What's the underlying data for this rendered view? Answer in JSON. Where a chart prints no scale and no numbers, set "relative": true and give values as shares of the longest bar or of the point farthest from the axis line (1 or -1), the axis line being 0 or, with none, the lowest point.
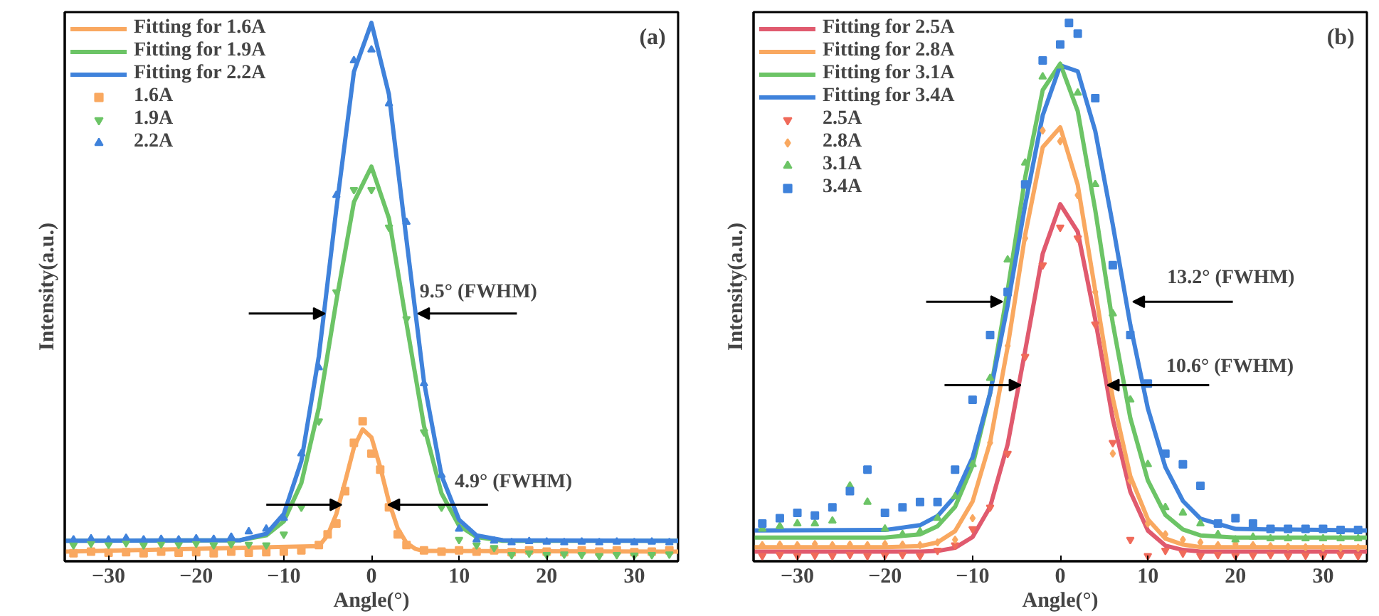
{
  "chart_data": [
    {
      "type": "line",
      "relative": true,
      "xlabel": "Angle(°)",
      "ylabel": "Intensity(a.u.)",
      "xlim": [
        -35,
        35
      ],
      "xticks": [
        -30,
        -20,
        -10,
        0,
        10,
        20,
        30
      ],
      "legend": "top left",
      "annotations": [
        "(a)",
        "9.5° (FWHM)",
        "4.9° (FWHM)"
      ],
      "series": [
        {
          "name": "Fitting for 1.6A",
          "color": "#f9a860",
          "x": [
            -35,
            -6,
            -5,
            -4,
            -3,
            -2,
            -1,
            0,
            1,
            2,
            3,
            4,
            5,
            6,
            35
          ],
          "values": [
            0.018,
            0.028,
            0.048,
            0.088,
            0.148,
            0.211,
            0.245,
            0.23,
            0.175,
            0.11,
            0.061,
            0.034,
            0.023,
            0.019,
            0.018
          ]
        },
        {
          "name": "Fitting for 1.9A",
          "color": "#6cc466",
          "x": [
            -35,
            -15,
            -12,
            -10,
            -8,
            -6,
            -4,
            -2,
            0,
            2,
            4,
            6,
            8,
            10,
            12,
            15,
            35
          ],
          "values": [
            0.038,
            0.039,
            0.048,
            0.074,
            0.145,
            0.285,
            0.484,
            0.667,
            0.733,
            0.637,
            0.442,
            0.251,
            0.126,
            0.066,
            0.045,
            0.038,
            0.038
          ]
        },
        {
          "name": "Fitting for 2.2A",
          "color": "#3f82db",
          "x": [
            -35,
            -15,
            -12,
            -10,
            -8,
            -6,
            -4,
            -2,
            0,
            2,
            4,
            6,
            8,
            10,
            12,
            15,
            35
          ],
          "values": [
            0.038,
            0.039,
            0.051,
            0.088,
            0.186,
            0.381,
            0.655,
            0.909,
            1.0,
            0.867,
            0.597,
            0.333,
            0.159,
            0.077,
            0.048,
            0.039,
            0.038
          ]
        },
        {
          "name": "1.6A",
          "type": "scatter",
          "marker": "square",
          "color": "#f9a860",
          "x": [
            -34,
            -32,
            -30,
            -28,
            -26,
            -24,
            -22,
            -20,
            -18,
            -16,
            -14,
            -12,
            -10,
            -8,
            -6,
            -5,
            -4,
            -3,
            -2,
            -1,
            0,
            1,
            2,
            3,
            4,
            6,
            8,
            10,
            12,
            14,
            16,
            18,
            20,
            22,
            24,
            26,
            28,
            30,
            32,
            34
          ],
          "values": [
            0.015,
            0.018,
            0.016,
            0.017,
            0.015,
            0.018,
            0.016,
            0.017,
            0.015,
            0.018,
            0.016,
            0.017,
            0.018,
            0.02,
            0.03,
            0.05,
            0.07,
            0.13,
            0.22,
            0.26,
            0.2,
            0.17,
            0.1,
            0.05,
            0.03,
            0.02,
            0.018,
            0.02,
            0.018,
            0.02,
            0.017,
            0.02,
            0.018,
            0.017,
            0.02,
            0.018,
            0.02,
            0.017,
            0.018,
            0.02
          ]
        },
        {
          "name": "1.9A",
          "type": "scatter",
          "color": "#6cc466",
          "x": [
            -34,
            -32,
            -30,
            -28,
            -26,
            -24,
            -22,
            -20,
            -18,
            -16,
            -14,
            -12,
            -10,
            -8,
            -6,
            -4,
            -2,
            0,
            2,
            4,
            6,
            8,
            10,
            12,
            14,
            16,
            18,
            20,
            22,
            24,
            26,
            28,
            30,
            32,
            34
          ],
          "values": [
            0.03,
            0.033,
            0.031,
            0.034,
            0.03,
            0.032,
            0.031,
            0.033,
            0.03,
            0.032,
            0.031,
            0.03,
            0.05,
            0.1,
            0.26,
            0.5,
            0.69,
            0.69,
            0.62,
            0.45,
            0.24,
            0.1,
            0.04,
            0.03,
            0.025,
            0.012,
            0.015,
            0.012,
            0.013,
            0.012,
            0.01,
            0.012,
            0.011,
            0.012,
            0.013
          ]
        },
        {
          "name": "2.2A",
          "type": "scatter",
          "marker": "triangle",
          "color": "#3f82db",
          "x": [
            -34,
            -32,
            -30,
            -28,
            -26,
            -24,
            -22,
            -20,
            -18,
            -16,
            -14,
            -12,
            -10,
            -8,
            -6,
            -4,
            -2,
            0,
            2,
            4,
            6,
            8,
            10,
            12,
            14,
            16,
            18,
            20,
            22,
            24,
            26,
            28,
            30,
            32,
            34
          ],
          "values": [
            0.04,
            0.042,
            0.04,
            0.043,
            0.04,
            0.041,
            0.04,
            0.042,
            0.041,
            0.045,
            0.055,
            0.06,
            0.08,
            0.2,
            0.36,
            0.68,
            0.93,
            0.95,
            0.85,
            0.63,
            0.33,
            0.16,
            0.06,
            0.04,
            0.038,
            0.035,
            0.037,
            0.036,
            0.035,
            0.036,
            0.035,
            0.036,
            0.035,
            0.036,
            0.035
          ]
        }
      ]
    },
    {
      "type": "line",
      "relative": true,
      "xlabel": "Angle(°)",
      "ylabel": "Intensity(a.u.)",
      "xlim": [
        -35,
        35
      ],
      "xticks": [
        -30,
        -20,
        -10,
        0,
        10,
        20,
        30
      ],
      "legend": "top left",
      "annotations": [
        "(b)",
        "13.2° (FWHM)",
        "10.6° (FWHM)"
      ],
      "series": [
        {
          "name": "Fitting for 2.5A",
          "color": "#e05a6e",
          "x": [
            -35,
            -20,
            -16,
            -14,
            -12,
            -10,
            -8,
            -6,
            -4,
            -2,
            0,
            2,
            4,
            6,
            8,
            10,
            12,
            14,
            16,
            20,
            35
          ],
          "values": [
            0.018,
            0.018,
            0.018,
            0.019,
            0.025,
            0.045,
            0.101,
            0.217,
            0.391,
            0.571,
            0.663,
            0.612,
            0.449,
            0.264,
            0.129,
            0.057,
            0.029,
            0.021,
            0.018,
            0.018,
            0.018
          ]
        },
        {
          "name": "Fitting for 2.8A",
          "color": "#f9a860",
          "x": [
            -35,
            -20,
            -16,
            -14,
            -12,
            -10,
            -8,
            -6,
            -4,
            -2,
            0,
            2,
            4,
            6,
            8,
            10,
            12,
            14,
            16,
            20,
            35
          ],
          "values": [
            0.026,
            0.026,
            0.028,
            0.035,
            0.056,
            0.111,
            0.221,
            0.398,
            0.606,
            0.769,
            0.806,
            0.699,
            0.502,
            0.303,
            0.158,
            0.078,
            0.042,
            0.031,
            0.026,
            0.026,
            0.026
          ]
        },
        {
          "name": "Fitting for 3.1A",
          "color": "#6cc466",
          "x": [
            -35,
            -20,
            -16,
            -14,
            -12,
            -10,
            -8,
            -6,
            -4,
            -2,
            0,
            2,
            4,
            6,
            8,
            10,
            12,
            14,
            16,
            20,
            35
          ],
          "values": [
            0.044,
            0.044,
            0.05,
            0.065,
            0.101,
            0.178,
            0.312,
            0.503,
            0.713,
            0.875,
            0.924,
            0.836,
            0.652,
            0.442,
            0.266,
            0.15,
            0.086,
            0.059,
            0.048,
            0.044,
            0.044
          ]
        },
        {
          "name": "Fitting for 3.4A",
          "color": "#3f82db",
          "x": [
            -35,
            -20,
            -16,
            -14,
            -12,
            -10,
            -8,
            -6,
            -4,
            -2,
            0,
            2,
            4,
            6,
            8,
            10,
            12,
            14,
            16,
            20,
            35
          ],
          "values": [
            0.057,
            0.058,
            0.067,
            0.084,
            0.121,
            0.193,
            0.312,
            0.475,
            0.662,
            0.828,
            0.921,
            0.91,
            0.799,
            0.625,
            0.439,
            0.284,
            0.175,
            0.112,
            0.079,
            0.06,
            0.057
          ]
        },
        {
          "name": "2.5A",
          "type": "scatter",
          "color": "#f06a5a",
          "x": [
            -34,
            -32,
            -30,
            -28,
            -26,
            -24,
            -22,
            -20,
            -18,
            -16,
            -14,
            -12,
            -10,
            -8,
            -6,
            -4,
            -2,
            0,
            2,
            4,
            6,
            8,
            10,
            12,
            14,
            16,
            18,
            20,
            22,
            24,
            26,
            28,
            30,
            32,
            34
          ],
          "values": [
            0.01,
            0.012,
            0.01,
            0.011,
            0.01,
            0.012,
            0.01,
            0.011,
            0.012,
            0.01,
            0.02,
            0.03,
            0.06,
            0.1,
            0.2,
            0.38,
            0.55,
            0.62,
            0.6,
            0.44,
            0.22,
            0.04,
            0.01,
            0.02,
            0.015,
            0.01,
            0.012,
            0.01,
            0.011,
            0.012,
            0.01,
            0.011,
            0.01,
            0.012,
            0.01
          ]
        },
        {
          "name": "2.8A",
          "type": "scatter",
          "marker": "diamond",
          "color": "#f9a860",
          "x": [
            -34,
            -32,
            -30,
            -28,
            -26,
            -24,
            -22,
            -20,
            -18,
            -16,
            -14,
            -12,
            -10,
            -8,
            -6,
            -4,
            -2,
            0,
            2,
            4,
            6,
            8,
            10,
            12,
            14,
            16,
            18,
            20,
            22,
            24,
            26,
            28,
            30,
            32,
            34
          ],
          "values": [
            0.03,
            0.031,
            0.03,
            0.032,
            0.03,
            0.031,
            0.03,
            0.032,
            0.031,
            0.03,
            0.035,
            0.04,
            0.08,
            0.22,
            0.4,
            0.6,
            0.8,
            0.78,
            0.68,
            0.5,
            0.2,
            0.15,
            0.07,
            0.05,
            0.04,
            0.035,
            0.03,
            0.032,
            0.03,
            0.028,
            0.027,
            0.026,
            0.025,
            0.025,
            0.025
          ]
        },
        {
          "name": "3.1A",
          "type": "scatter",
          "marker": "triangle",
          "color": "#6cc466",
          "x": [
            -34,
            -32,
            -30,
            -28,
            -26,
            -24,
            -22,
            -20,
            -18,
            -16,
            -14,
            -12,
            -10,
            -8,
            -6,
            -4,
            -2,
            0,
            2,
            4,
            6,
            8,
            10,
            12,
            14,
            16,
            18,
            20,
            22,
            24,
            26,
            28,
            30,
            32,
            34
          ],
          "values": [
            0.06,
            0.065,
            0.07,
            0.07,
            0.075,
            0.14,
            0.11,
            0.06,
            0.05,
            0.055,
            0.08,
            0.12,
            0.18,
            0.34,
            0.56,
            0.74,
            0.9,
            0.92,
            0.87,
            0.7,
            0.46,
            0.3,
            0.18,
            0.1,
            0.09,
            0.07,
            0.05,
            0.04,
            0.045,
            0.042,
            0.042,
            0.042,
            0.042,
            0.042,
            0.042
          ]
        },
        {
          "name": "3.4A",
          "type": "scatter",
          "marker": "square",
          "color": "#3f82db",
          "x": [
            -34,
            -32,
            -30,
            -28,
            -26,
            -24,
            -22,
            -20,
            -18,
            -16,
            -14,
            -12,
            -10,
            -8,
            -6,
            -4,
            -2,
            0,
            1,
            2,
            4,
            6,
            8,
            10,
            12,
            14,
            16,
            18,
            20,
            22,
            24,
            26,
            28,
            30,
            32,
            34
          ],
          "values": [
            0.07,
            0.08,
            0.09,
            0.085,
            0.1,
            0.13,
            0.17,
            0.09,
            0.1,
            0.11,
            0.11,
            0.17,
            0.3,
            0.42,
            0.5,
            0.7,
            0.93,
            0.96,
            1.0,
            0.98,
            0.86,
            0.55,
            0.42,
            0.33,
            0.2,
            0.18,
            0.14,
            0.07,
            0.08,
            0.07,
            0.06,
            0.06,
            0.06,
            0.06,
            0.058,
            0.058
          ]
        }
      ]
    }
  ]
}
